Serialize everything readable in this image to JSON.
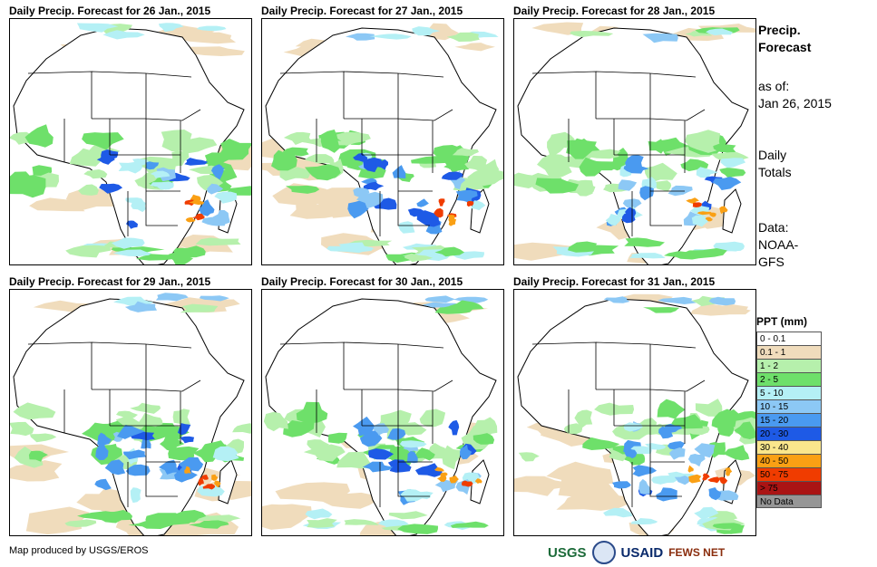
{
  "panels": [
    {
      "title": "Daily Precip. Forecast for 26 Jan., 2015"
    },
    {
      "title": "Daily Precip. Forecast for 27 Jan., 2015"
    },
    {
      "title": "Daily Precip. Forecast for 28 Jan., 2015"
    },
    {
      "title": "Daily Precip. Forecast for 29 Jan., 2015"
    },
    {
      "title": "Daily Precip. Forecast for 30 Jan., 2015"
    },
    {
      "title": "Daily Precip. Forecast for 31 Jan., 2015"
    }
  ],
  "side": {
    "title_line1": "Precip.",
    "title_line2": "Forecast",
    "asof_line1": "as of:",
    "asof_line2": "Jan 26, 2015",
    "totals_line1": "Daily",
    "totals_line2": "Totals",
    "data_line1": "Data:",
    "data_line2": "NOAA-",
    "data_line3": "GFS"
  },
  "legend": {
    "title": "PPT (mm)",
    "items": [
      {
        "label": "0 - 0.1",
        "color": "#ffffff"
      },
      {
        "label": "0.1 - 1",
        "color": "#f0dcbc"
      },
      {
        "label": "1 - 2",
        "color": "#b6f0ac"
      },
      {
        "label": "2 - 5",
        "color": "#6ee06a"
      },
      {
        "label": "5 - 10",
        "color": "#b4f0f5"
      },
      {
        "label": "10 - 15",
        "color": "#8cc8f5"
      },
      {
        "label": "15 - 20",
        "color": "#4a9af0"
      },
      {
        "label": "20 - 30",
        "color": "#1e5ae6"
      },
      {
        "label": "30 - 40",
        "color": "#fae68c"
      },
      {
        "label": "40 - 50",
        "color": "#faa014"
      },
      {
        "label": "50 - 75",
        "color": "#f03c00"
      },
      {
        "label": "> 75",
        "color": "#aa1414"
      },
      {
        "label": "No Data",
        "color": "#969696"
      }
    ]
  },
  "footer": {
    "credit": "Map produced by USGS/EROS"
  },
  "logos": {
    "usgs": "USGS",
    "usaid": "USAID",
    "fewsnet": "FEWS NET"
  }
}
